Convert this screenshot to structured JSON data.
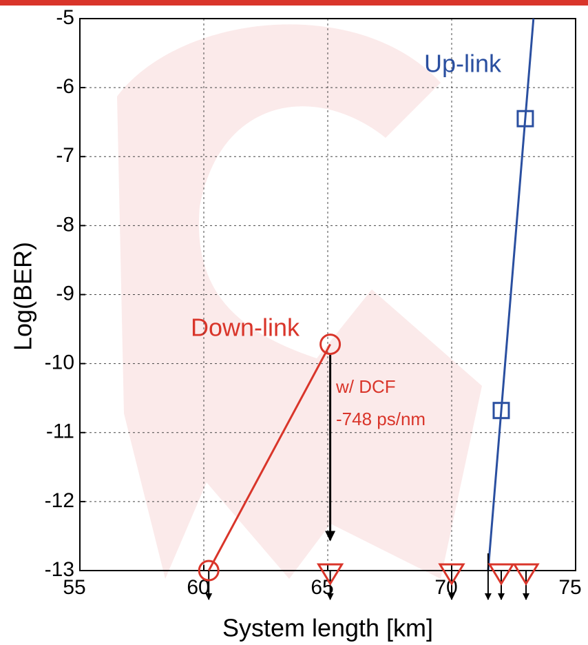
{
  "chart_data": {
    "type": "line",
    "x_label": "System length [km]",
    "y_label": "Log(BER)",
    "xlim": [
      55,
      75
    ],
    "ylim": [
      -13,
      -5
    ],
    "xticks": [
      55,
      60,
      65,
      70,
      75
    ],
    "yticks": [
      -5,
      -6,
      -7,
      -8,
      -9,
      -10,
      -11,
      -12,
      -13
    ],
    "grid": true,
    "series": [
      {
        "name": "Down-link",
        "color": "#d9352a",
        "marker": "circle",
        "x": [
          60.2,
          65.1
        ],
        "values": [
          -13,
          -9.72
        ]
      },
      {
        "color": "#d9352a",
        "marker": "triangle",
        "line": false,
        "x": [
          65.1,
          70.0,
          72.0,
          73.0
        ],
        "values": [
          -13,
          -13,
          -13,
          -13
        ]
      },
      {
        "name": "Up-link",
        "color": "#2a4fa0",
        "marker": "square",
        "x": [
          72.0,
          72.97
        ],
        "values": [
          -10.68,
          -6.45
        ],
        "line_x": [
          71.47,
          73.3
        ],
        "line_values": [
          -13,
          -5
        ]
      }
    ],
    "annotation": [
      "w/ DCF",
      "-748 ps/nm"
    ]
  }
}
